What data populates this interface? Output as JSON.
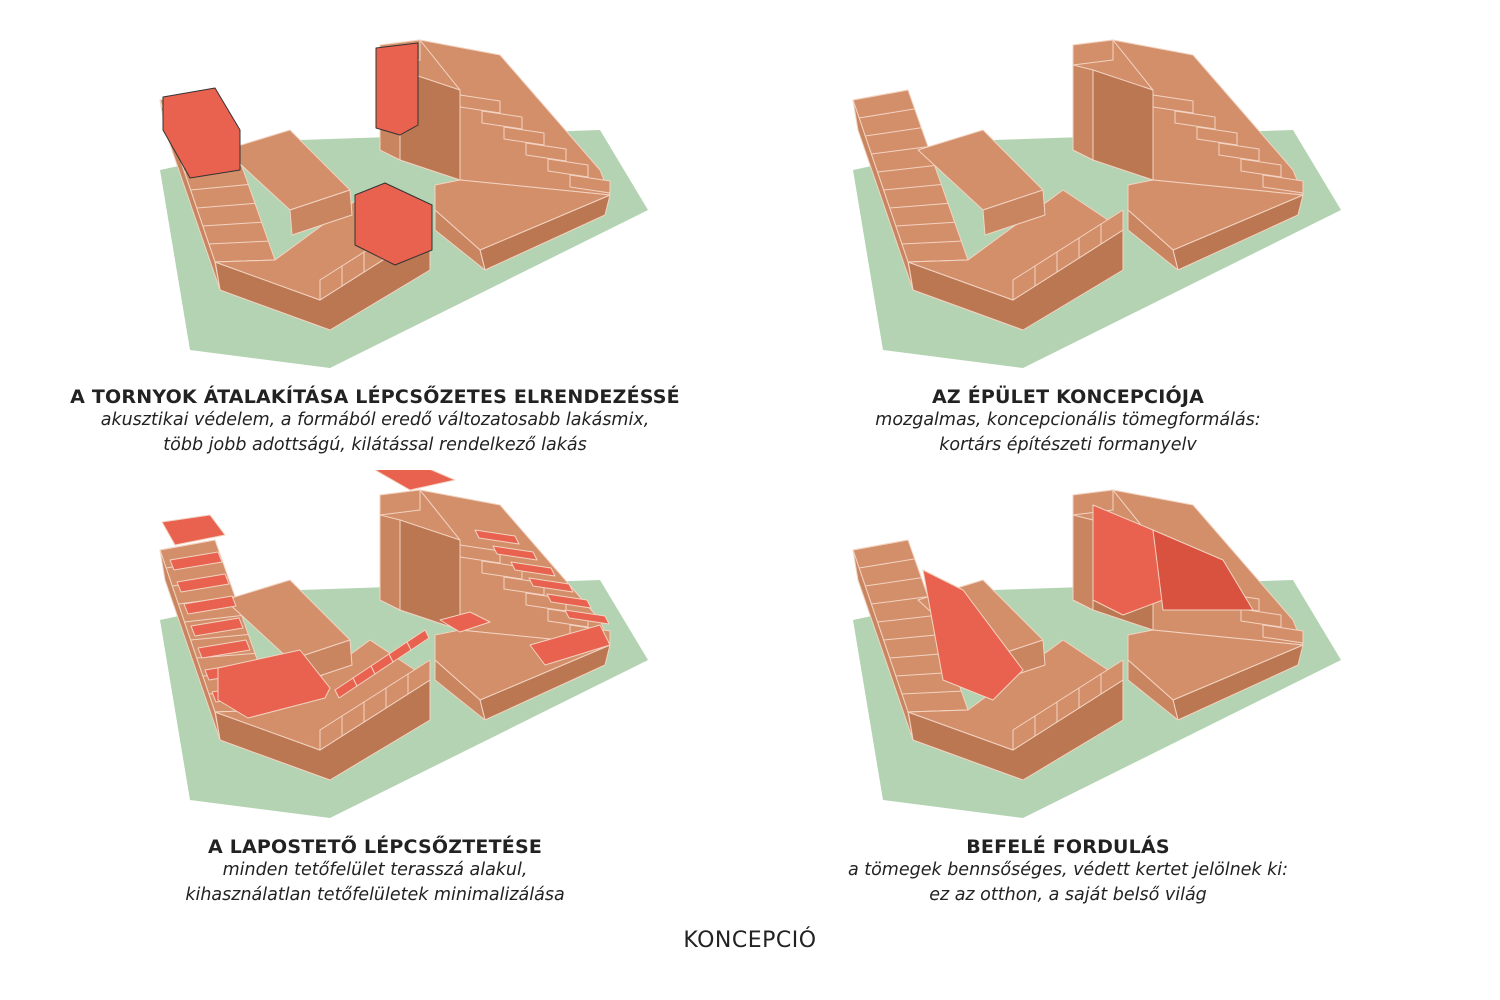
{
  "colors": {
    "ground": "#b3d3b2",
    "mass_top": "#d38f6a",
    "mass_side": "#c98560",
    "mass_dark": "#bb7752",
    "highlight": "#e9624f",
    "highlight_dark": "#d9523f",
    "outline": "#f2d3c2"
  },
  "panels": [
    {
      "title": "A TORNYOK ÁTALAKÍTÁSA LÉPCSŐZETES ELRENDEZÉSSÉ",
      "lines": [
        "akusztikai védelem, a formából eredő változatosabb lakásmix,",
        "több jobb adottságú, kilátással rendelkező lakás"
      ],
      "highlight": "towers"
    },
    {
      "title": "AZ ÉPÜLET KONCEPCIÓJA",
      "lines": [
        "mozgalmas, koncepcionális tömegformálás:",
        "kortárs építészeti formanyelv"
      ],
      "highlight": "none"
    },
    {
      "title": "A LAPOSTETŐ LÉPCSŐZTETÉSE",
      "lines": [
        "minden tetőfelület terasszá alakul,",
        "kihasználatlan tetőfelületek minimalizálása"
      ],
      "highlight": "roofs"
    },
    {
      "title": "BEFELÉ FORDULÁS",
      "lines": [
        "a tömegek bennsőséges, védett kertet jelölnek ki:",
        "ez az otthon, a saját belső világ"
      ],
      "highlight": "inner"
    }
  ],
  "footer": "KONCEPCIÓ"
}
